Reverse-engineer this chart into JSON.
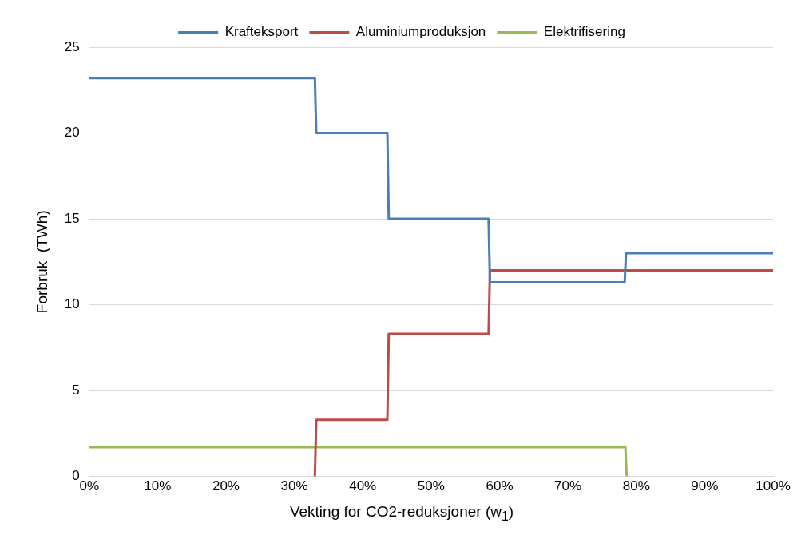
{
  "chart_data": {
    "type": "line",
    "xlabel": "Vekting for CO2-reduksjoner (w$_{1}$)",
    "ylabel": "Forbruk  (TWh)",
    "series": [
      {
        "name": "Krafteksport",
        "color": "#4a7ebb",
        "x": [
          0,
          33,
          33.2,
          43.6,
          43.8,
          58.4,
          58.6,
          78.3,
          78.5,
          100
        ],
        "values": [
          23.2,
          23.2,
          20,
          20,
          15,
          15,
          11.3,
          11.3,
          13,
          13
        ]
      },
      {
        "name": "Aluminiumproduksjon",
        "color": "#be4b48",
        "x": [
          33,
          33.2,
          43.6,
          43.8,
          58.4,
          58.6,
          100
        ],
        "values": [
          0,
          3.3,
          3.3,
          8.3,
          8.3,
          12,
          12
        ]
      },
      {
        "name": "Elektrifisering",
        "color": "#98b954",
        "x": [
          0,
          78.4,
          78.6
        ],
        "values": [
          1.7,
          1.7,
          0
        ]
      }
    ],
    "xlim": [
      0,
      100
    ],
    "xticks": [
      {
        "value": 0,
        "label": "0%"
      },
      {
        "value": 10,
        "label": "10%"
      },
      {
        "value": 20,
        "label": "20%"
      },
      {
        "value": 30,
        "label": "30%"
      },
      {
        "value": 40,
        "label": "40%"
      },
      {
        "value": 50,
        "label": "50%"
      },
      {
        "value": 60,
        "label": "60%"
      },
      {
        "value": 70,
        "label": "70%"
      },
      {
        "value": 80,
        "label": "80%"
      },
      {
        "value": 90,
        "label": "90%"
      },
      {
        "value": 100,
        "label": "100%"
      }
    ],
    "ylim": [
      0,
      25
    ],
    "yticks": [
      0,
      5,
      10,
      15,
      20,
      25
    ],
    "grid": "y",
    "legend": "top"
  }
}
